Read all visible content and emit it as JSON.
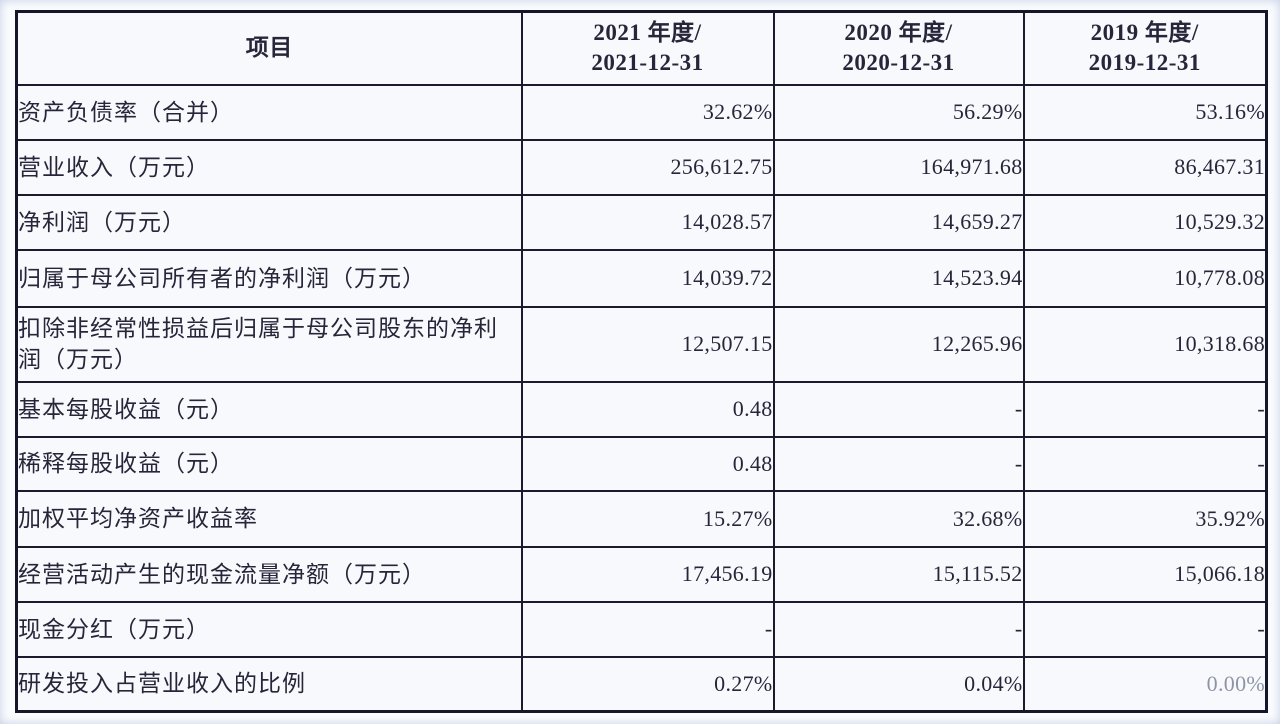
{
  "table": {
    "colors": {
      "border": "#1b1b2e",
      "cell_background": "#f8f9fc",
      "text": "#26263a",
      "faded_text": "#8d94a6",
      "page_background": "#fbfcfe"
    },
    "header": {
      "item_label": "项目",
      "columns": [
        {
          "line1": "2021 年度/",
          "line2": "2021-12-31"
        },
        {
          "line1": "2020 年度/",
          "line2": "2020-12-31"
        },
        {
          "line1": "2019 年度/",
          "line2": "2019-12-31"
        }
      ]
    },
    "rows": [
      {
        "label": "资产负债率（合并）",
        "values": [
          "32.62%",
          "56.29%",
          "53.16%"
        ]
      },
      {
        "label": "营业收入（万元）",
        "values": [
          "256,612.75",
          "164,971.68",
          "86,467.31"
        ]
      },
      {
        "label": "净利润（万元）",
        "values": [
          "14,028.57",
          "14,659.27",
          "10,529.32"
        ]
      },
      {
        "label": "归属于母公司所有者的净利润（万元）",
        "values": [
          "14,039.72",
          "14,523.94",
          "10,778.08"
        ]
      },
      {
        "label": "扣除非经常性损益后归属于母公司股东的净利润（万元）",
        "values": [
          "12,507.15",
          "12,265.96",
          "10,318.68"
        ]
      },
      {
        "label": "基本每股收益（元）",
        "values": [
          "0.48",
          "-",
          "-"
        ]
      },
      {
        "label": "稀释每股收益（元）",
        "values": [
          "0.48",
          "-",
          "-"
        ]
      },
      {
        "label": "加权平均净资产收益率",
        "values": [
          "15.27%",
          "32.68%",
          "35.92%"
        ]
      },
      {
        "label": "经营活动产生的现金流量净额（万元）",
        "values": [
          "17,456.19",
          "15,115.52",
          "15,066.18"
        ]
      },
      {
        "label": "现金分红（万元）",
        "values": [
          "-",
          "-",
          "-"
        ]
      },
      {
        "label": "研发投入占营业收入的比例",
        "values": [
          "0.27%",
          "0.04%",
          "0.00%"
        ]
      }
    ]
  }
}
